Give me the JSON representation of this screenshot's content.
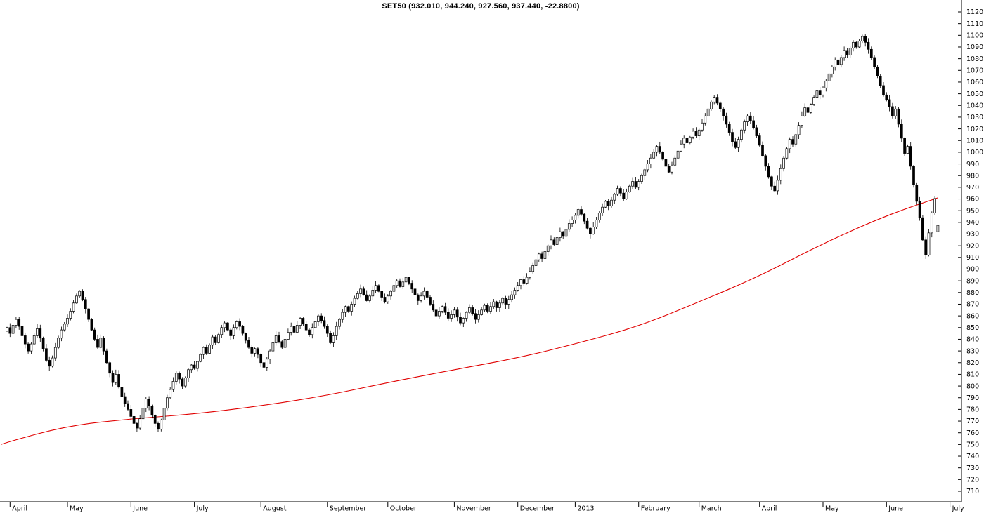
{
  "chart_data": {
    "type": "candlestick",
    "title": "SET50 (932.010, 944.240, 927.560, 937.440, -22.8800)",
    "symbol": "SET50",
    "last_quote": {
      "open": 932.01,
      "high": 944.24,
      "low": 927.56,
      "close": 937.44,
      "change": -22.88
    },
    "y_axis": {
      "min": 710,
      "max": 1120,
      "step": 10,
      "side": "right"
    },
    "x_axis": {
      "ticks": [
        {
          "label": "April",
          "index": 1
        },
        {
          "label": "May",
          "index": 20
        },
        {
          "label": "June",
          "index": 41
        },
        {
          "label": "July",
          "index": 62
        },
        {
          "label": "August",
          "index": 84
        },
        {
          "label": "September",
          "index": 106
        },
        {
          "label": "October",
          "index": 126
        },
        {
          "label": "November",
          "index": 148
        },
        {
          "label": "December",
          "index": 169
        },
        {
          "label": "2013",
          "index": 188
        },
        {
          "label": "February",
          "index": 209
        },
        {
          "label": "March",
          "index": 229
        },
        {
          "label": "April",
          "index": 249
        },
        {
          "label": "May",
          "index": 270
        },
        {
          "label": "June",
          "index": 291
        },
        {
          "label": "July",
          "index": 312
        }
      ]
    },
    "series": {
      "closes": [
        850,
        845,
        852,
        857,
        851,
        843,
        836,
        830,
        836,
        843,
        849,
        841,
        832,
        822,
        817,
        824,
        833,
        841,
        848,
        853,
        858,
        864,
        871,
        877,
        881,
        874,
        866,
        857,
        848,
        840,
        833,
        841,
        830,
        820,
        811,
        803,
        810,
        799,
        791,
        785,
        780,
        774,
        768,
        764,
        772,
        781,
        789,
        783,
        775,
        768,
        763,
        771,
        781,
        790,
        797,
        804,
        811,
        806,
        800,
        807,
        814,
        818,
        815,
        821,
        827,
        833,
        828,
        835,
        842,
        837,
        844,
        850,
        854,
        848,
        843,
        850,
        855,
        851,
        845,
        839,
        833,
        828,
        832,
        827,
        820,
        816,
        823,
        830,
        837,
        843,
        838,
        833,
        840,
        846,
        851,
        846,
        852,
        858,
        853,
        848,
        844,
        850,
        855,
        860,
        856,
        851,
        845,
        837,
        843,
        851,
        857,
        863,
        868,
        864,
        870,
        875,
        879,
        883,
        878,
        873,
        877,
        882,
        886,
        881,
        876,
        872,
        877,
        881,
        886,
        890,
        885,
        889,
        893,
        888,
        883,
        878,
        873,
        877,
        881,
        876,
        870,
        865,
        860,
        864,
        868,
        863,
        858,
        861,
        865,
        859,
        854,
        858,
        863,
        867,
        862,
        857,
        861,
        865,
        869,
        864,
        868,
        872,
        867,
        871,
        875,
        870,
        874,
        878,
        882,
        886,
        891,
        888,
        893,
        898,
        903,
        908,
        913,
        909,
        915,
        920,
        925,
        921,
        927,
        932,
        928,
        934,
        939,
        942,
        946,
        951,
        947,
        941,
        935,
        930,
        936,
        942,
        948,
        953,
        958,
        954,
        959,
        964,
        969,
        965,
        960,
        966,
        971,
        975,
        970,
        975,
        980,
        985,
        990,
        995,
        1000,
        1005,
        1000,
        994,
        988,
        983,
        989,
        995,
        1001,
        1007,
        1012,
        1008,
        1013,
        1018,
        1014,
        1019,
        1025,
        1031,
        1037,
        1043,
        1047,
        1042,
        1037,
        1031,
        1024,
        1017,
        1009,
        1004,
        1011,
        1019,
        1026,
        1031,
        1027,
        1021,
        1014,
        1006,
        997,
        988,
        979,
        971,
        967,
        976,
        986,
        995,
        1003,
        1011,
        1007,
        1015,
        1023,
        1031,
        1038,
        1034,
        1041,
        1047,
        1053,
        1049,
        1055,
        1061,
        1067,
        1073,
        1079,
        1075,
        1081,
        1087,
        1083,
        1089,
        1094,
        1090,
        1095,
        1099,
        1094,
        1088,
        1081,
        1073,
        1065,
        1057,
        1049,
        1045,
        1039,
        1031,
        1037,
        1024,
        1012,
        999,
        1005,
        988,
        972,
        958,
        944,
        925,
        912,
        931,
        948,
        960.32,
        937.44
      ]
    },
    "moving_average": {
      "name": "long-term-moving-average",
      "color": "#e00000",
      "points": [
        [
          -2,
          750
        ],
        [
          0,
          752
        ],
        [
          20,
          766
        ],
        [
          41,
          772
        ],
        [
          62,
          776
        ],
        [
          84,
          783
        ],
        [
          106,
          792
        ],
        [
          126,
          803
        ],
        [
          148,
          814
        ],
        [
          169,
          824
        ],
        [
          188,
          836
        ],
        [
          209,
          851
        ],
        [
          229,
          872
        ],
        [
          249,
          894
        ],
        [
          270,
          922
        ],
        [
          291,
          946
        ],
        [
          308,
          961
        ]
      ]
    },
    "colors": {
      "up_fill": "#ffffff",
      "down_fill": "#000000",
      "outline": "#000000",
      "axis": "#000000",
      "background": "#ffffff"
    },
    "grid": "off",
    "legend": "none"
  }
}
